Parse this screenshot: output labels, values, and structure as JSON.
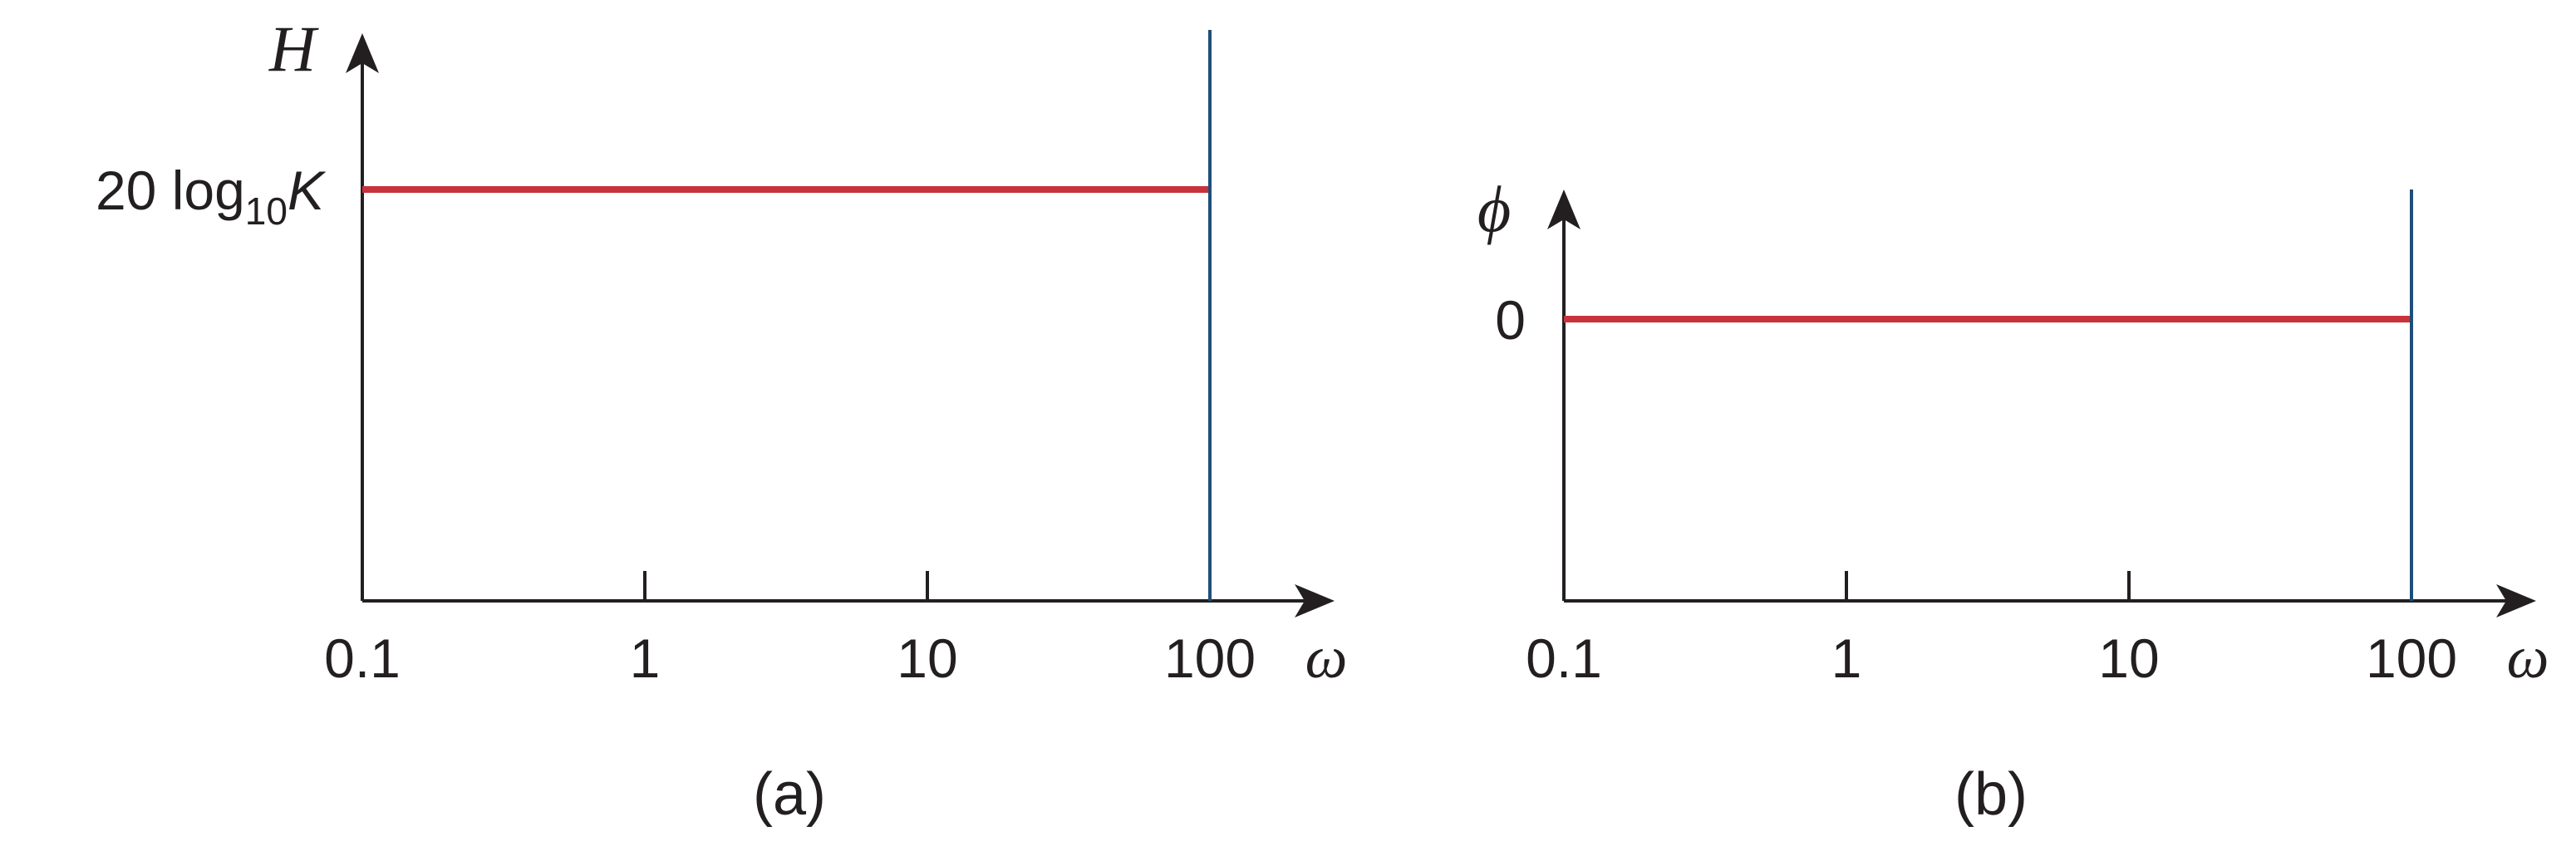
{
  "chart_data": [
    {
      "type": "line",
      "panel_label": "(a)",
      "ylabel": "H",
      "xlabel": "ω",
      "x_scale": "log",
      "xlim": [
        0.1,
        100
      ],
      "x_ticks": [
        "0.1",
        "1",
        "10",
        "100"
      ],
      "y_tick": {
        "main": "20 log",
        "sub": "10",
        "tail": "K"
      },
      "series": [
        {
          "x": [
            0.1,
            100
          ],
          "y": [
            "20 log10 K",
            "20 log10 K"
          ],
          "color": "#c8323a"
        }
      ],
      "marker": {
        "x": 100,
        "color": "#1f4e79"
      }
    },
    {
      "type": "line",
      "panel_label": "(b)",
      "ylabel": "ϕ",
      "xlabel": "ω",
      "x_scale": "log",
      "xlim": [
        0.1,
        100
      ],
      "x_ticks": [
        "0.1",
        "1",
        "10",
        "100"
      ],
      "y_tick": {
        "main": "0"
      },
      "series": [
        {
          "x": [
            0.1,
            100
          ],
          "y": [
            0,
            0
          ],
          "color": "#c8323a"
        }
      ],
      "marker": {
        "x": 100,
        "color": "#1f4e79"
      }
    }
  ]
}
